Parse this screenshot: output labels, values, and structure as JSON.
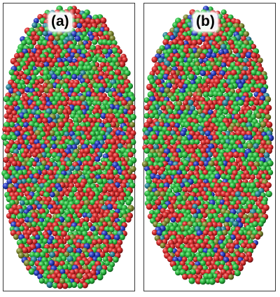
{
  "panels": [
    {
      "label": "(a)"
    },
    {
      "label": "(b)"
    }
  ],
  "colors": {
    "sphere_red": "#e02020",
    "sphere_green": "#22c43a",
    "sphere_blue": "#1f36c8",
    "sphere_olive": "#7f8a26",
    "sphere_teal": "#21879c",
    "frame": "#3a3a3a",
    "background": "#ffffff"
  }
}
